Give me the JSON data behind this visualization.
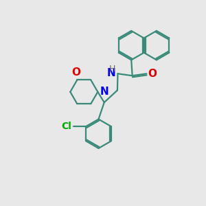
{
  "bg_color": "#e8e8e8",
  "bond_color": "#3a8a7a",
  "N_color": "#0000ee",
  "O_color": "#dd0000",
  "Cl_color": "#00aa00",
  "H_color": "#666666",
  "line_width": 1.6,
  "figsize": [
    3.0,
    3.0
  ],
  "dpi": 100,
  "xlim": [
    0,
    10
  ],
  "ylim": [
    0,
    10
  ]
}
